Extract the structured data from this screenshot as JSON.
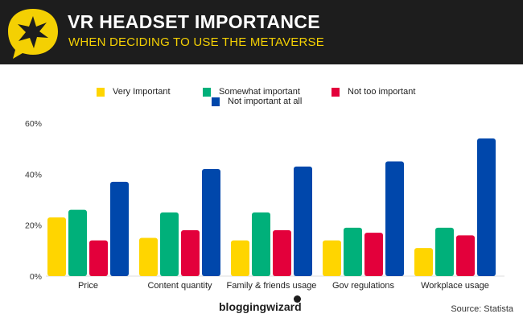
{
  "header": {
    "title": "VR HEADSET IMPORTANCE",
    "subtitle": "WHEN DECIDING TO USE THE METAVERSE"
  },
  "colors": {
    "header_bg": "#1d1d1d",
    "accent": "#f4d003",
    "very_important": "#ffd500",
    "somewhat_important": "#00b07a",
    "not_too_important": "#e3003b",
    "not_important_at_all": "#0047ab"
  },
  "footer": {
    "brand": "bloggingwizard",
    "source": "Source: Statista"
  },
  "chart_data": {
    "type": "bar",
    "categories": [
      "Price",
      "Content quantity",
      "Family & friends usage",
      "Gov regulations",
      "Workplace usage"
    ],
    "series": [
      {
        "name": "Very Important",
        "values": [
          23,
          15,
          14,
          14,
          11
        ],
        "color": "#ffd500"
      },
      {
        "name": "Somewhat important",
        "values": [
          26,
          25,
          25,
          19,
          19
        ],
        "color": "#00b07a"
      },
      {
        "name": "Not too important",
        "values": [
          14,
          18,
          18,
          17,
          16
        ],
        "color": "#e3003b"
      },
      {
        "name": "Not important at all",
        "values": [
          37,
          42,
          43,
          45,
          54
        ],
        "color": "#0047ab"
      }
    ],
    "yticks": [
      "0%",
      "20%",
      "40%",
      "60%"
    ],
    "ylim": [
      0,
      60
    ],
    "grid": false,
    "legend": "top"
  }
}
